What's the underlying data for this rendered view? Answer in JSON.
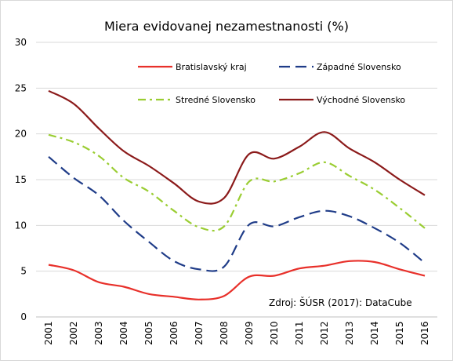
{
  "chart_data": {
    "type": "line",
    "title": "Miera evidovanej nezamestnanosti (%)",
    "xlabel": "",
    "ylabel": "",
    "x": [
      "2001",
      "2002",
      "2003",
      "2004",
      "2005",
      "2006",
      "2007",
      "2008",
      "2009",
      "2010",
      "2011",
      "2012",
      "2013",
      "2014",
      "2015",
      "2016"
    ],
    "ylim": [
      0,
      30
    ],
    "yticks": [
      0,
      5,
      10,
      15,
      20,
      25,
      30
    ],
    "grid": "horizontal",
    "legend_position": "top",
    "series": [
      {
        "name": "Bratislavský kraj",
        "color": "#e8302a",
        "dash": "solid",
        "values": [
          5.7,
          5.1,
          3.8,
          3.3,
          2.5,
          2.2,
          1.9,
          2.3,
          4.4,
          4.5,
          5.3,
          5.6,
          6.1,
          6.0,
          5.2,
          4.5
        ]
      },
      {
        "name": "Západné Slovensko",
        "color": "#1f3c88",
        "dash": "long-dash",
        "values": [
          17.5,
          15.2,
          13.3,
          10.5,
          8.2,
          6.1,
          5.2,
          5.5,
          10.1,
          9.9,
          10.9,
          11.6,
          11.0,
          9.7,
          8.1,
          5.9
        ]
      },
      {
        "name": "Stredné Slovensko",
        "color": "#9acd32",
        "dash": "dash-dot",
        "values": [
          19.9,
          19.1,
          17.6,
          15.2,
          13.7,
          11.6,
          9.8,
          9.9,
          14.8,
          14.8,
          15.7,
          16.9,
          15.4,
          13.9,
          11.9,
          9.7
        ]
      },
      {
        "name": "Východné Slovensko",
        "color": "#8b1a1a",
        "dash": "solid",
        "values": [
          24.7,
          23.3,
          20.6,
          18.1,
          16.5,
          14.6,
          12.6,
          13.0,
          17.8,
          17.3,
          18.6,
          20.2,
          18.4,
          16.9,
          15.0,
          13.3
        ]
      }
    ],
    "annotation": "Zdroj: ŠÚSR (2017): DataCube"
  }
}
